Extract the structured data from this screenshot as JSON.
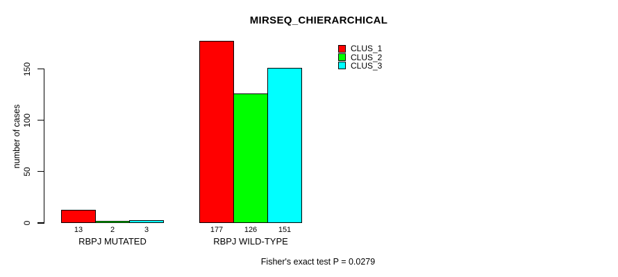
{
  "title": "MIRSEQ_CHIERARCHICAL",
  "footer": "Fisher's exact test P = 0.0279",
  "chart_data": {
    "type": "bar",
    "title": "MIRSEQ_CHIERARCHICAL",
    "xlabel": "",
    "ylabel": "number of cases",
    "categories": [
      "RBPJ MUTATED",
      "RBPJ WILD-TYPE"
    ],
    "series": [
      {
        "name": "CLUS_1",
        "color": "#FF0000",
        "values": [
          13,
          177
        ]
      },
      {
        "name": "CLUS_2",
        "color": "#00FF00",
        "values": [
          2,
          126
        ]
      },
      {
        "name": "CLUS_3",
        "color": "#00FFFF",
        "values": [
          3,
          151
        ]
      }
    ],
    "bar_value_labels": [
      [
        13,
        2,
        3
      ],
      [
        177,
        126,
        151
      ]
    ],
    "yticks": [
      0,
      50,
      100,
      150
    ],
    "ylim": [
      0,
      185
    ],
    "grid": false,
    "legend_position": "top-right",
    "annotation": "Fisher's exact test P = 0.0279"
  }
}
